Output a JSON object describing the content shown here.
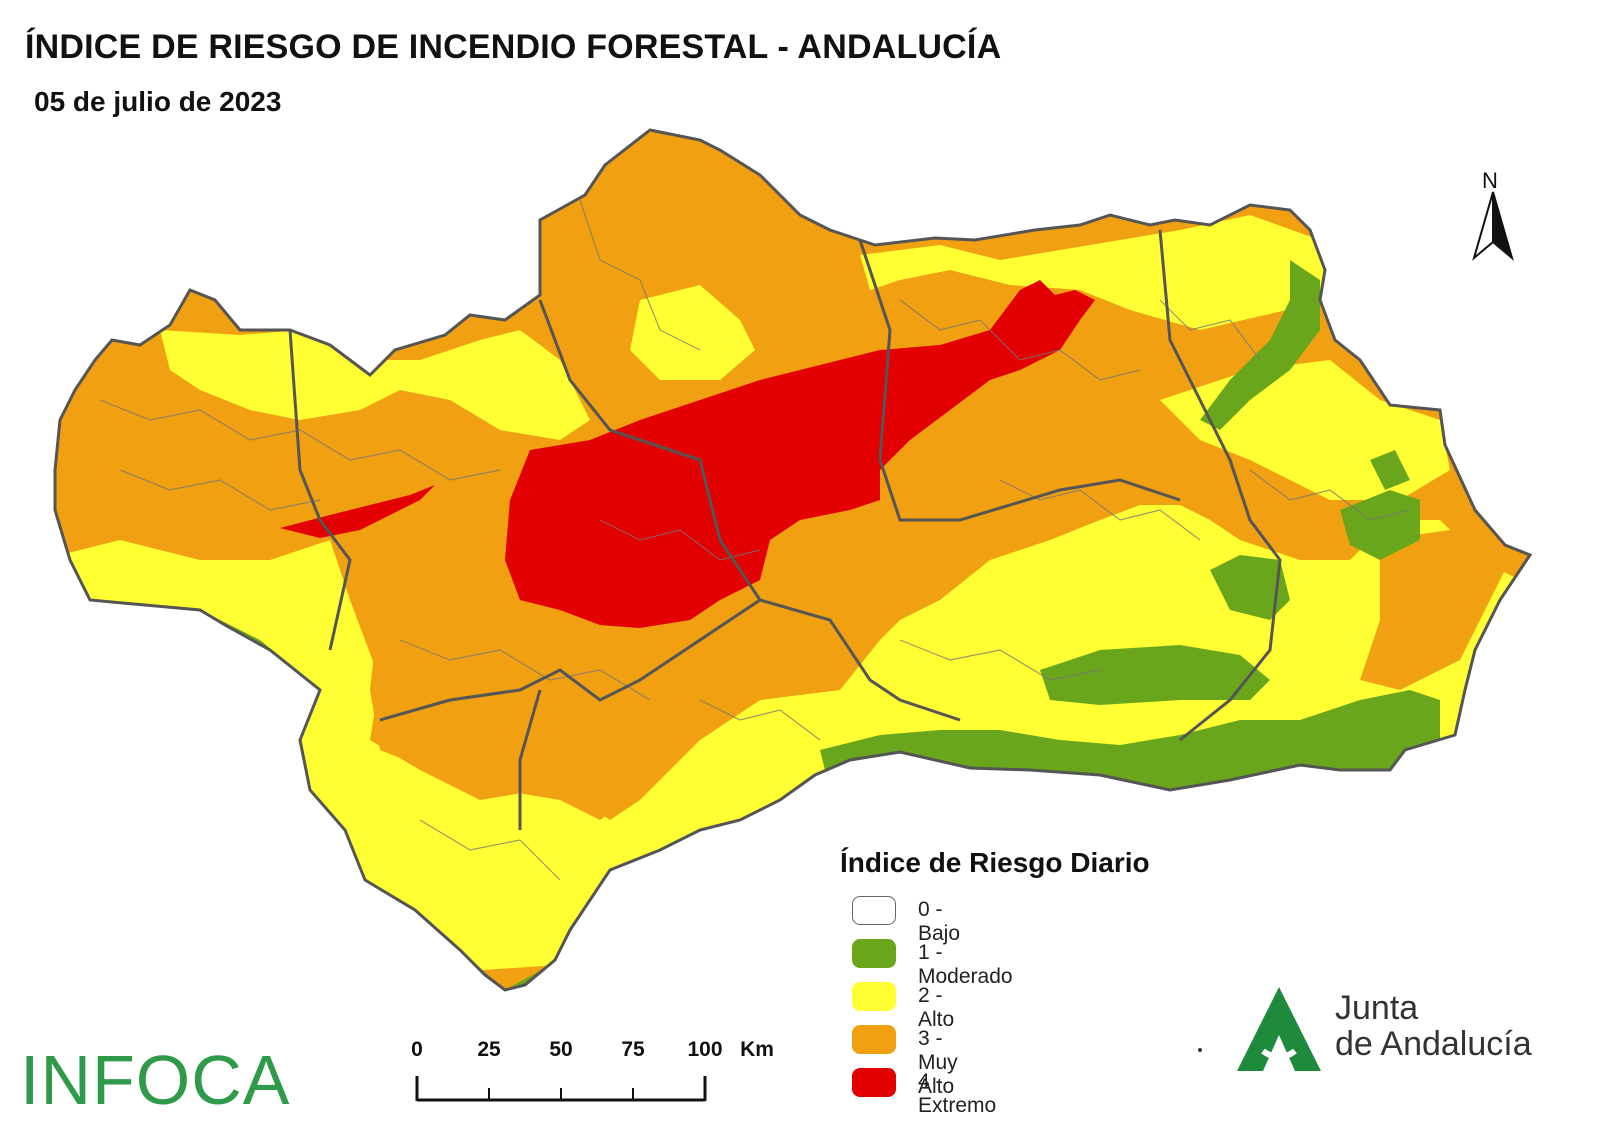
{
  "title": "ÍNDICE DE RIESGO DE INCENDIO FORESTAL - ANDALUCÍA",
  "date": "05 de julio de 2023",
  "north_label": "N",
  "legend": {
    "title": "Índice de Riesgo Diario",
    "items": [
      {
        "label": "0 - Bajo",
        "color": "#ffffff"
      },
      {
        "label": "1 - Moderado",
        "color": "#6aa61c"
      },
      {
        "label": "2 - Alto",
        "color": "#ffff33"
      },
      {
        "label": "3 - Muy Alto",
        "color": "#f0a010"
      },
      {
        "label": "4 - Extremo",
        "color": "#e20000"
      }
    ]
  },
  "scale_bar": {
    "ticks": [
      "0",
      "25",
      "50",
      "75",
      "100"
    ],
    "unit": "Km"
  },
  "logos": {
    "left": "INFOCA",
    "right_line1": "Junta",
    "right_line2": "de Andalucía"
  },
  "colors": {
    "border": "#555555",
    "infoca_green": "#2f9a4a",
    "junta_green": "#1e8a3c"
  }
}
